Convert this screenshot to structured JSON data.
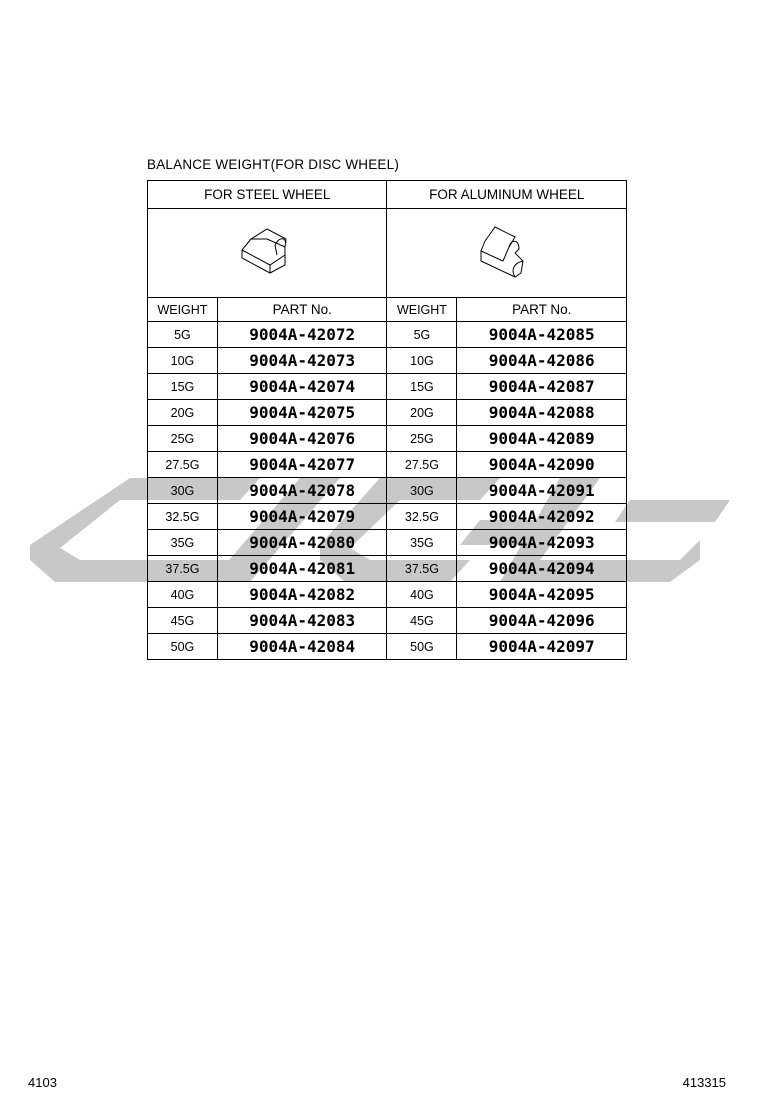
{
  "title": "BALANCE WEIGHT(FOR DISC WHEEL)",
  "sections": [
    {
      "label": "FOR STEEL WHEEL",
      "icon": "balance-weight-steel-icon"
    },
    {
      "label": "FOR ALUMINUM WHEEL",
      "icon": "balance-weight-aluminum-icon"
    }
  ],
  "headers": {
    "weight": "WEIGHT",
    "part": "PART No."
  },
  "rows": [
    {
      "sw": "5G",
      "sp": "9004A-42072",
      "aw": "5G",
      "ap": "9004A-42085"
    },
    {
      "sw": "10G",
      "sp": "9004A-42073",
      "aw": "10G",
      "ap": "9004A-42086"
    },
    {
      "sw": "15G",
      "sp": "9004A-42074",
      "aw": "15G",
      "ap": "9004A-42087"
    },
    {
      "sw": "20G",
      "sp": "9004A-42075",
      "aw": "20G",
      "ap": "9004A-42088"
    },
    {
      "sw": "25G",
      "sp": "9004A-42076",
      "aw": "25G",
      "ap": "9004A-42089"
    },
    {
      "sw": "27.5G",
      "sp": "9004A-42077",
      "aw": "27.5G",
      "ap": "9004A-42090"
    },
    {
      "sw": "30G",
      "sp": "9004A-42078",
      "aw": "30G",
      "ap": "9004A-42091"
    },
    {
      "sw": "32.5G",
      "sp": "9004A-42079",
      "aw": "32.5G",
      "ap": "9004A-42092"
    },
    {
      "sw": "35G",
      "sp": "9004A-42080",
      "aw": "35G",
      "ap": "9004A-42093"
    },
    {
      "sw": "37.5G",
      "sp": "9004A-42081",
      "aw": "37.5G",
      "ap": "9004A-42094"
    },
    {
      "sw": "40G",
      "sp": "9004A-42082",
      "aw": "40G",
      "ap": "9004A-42095"
    },
    {
      "sw": "45G",
      "sp": "9004A-42083",
      "aw": "45G",
      "ap": "9004A-42096"
    },
    {
      "sw": "50G",
      "sp": "9004A-42084",
      "aw": "50G",
      "ap": "9004A-42097"
    }
  ],
  "footer": {
    "left": "4103",
    "right": "413315"
  },
  "watermark_color": "#c8c8c8"
}
